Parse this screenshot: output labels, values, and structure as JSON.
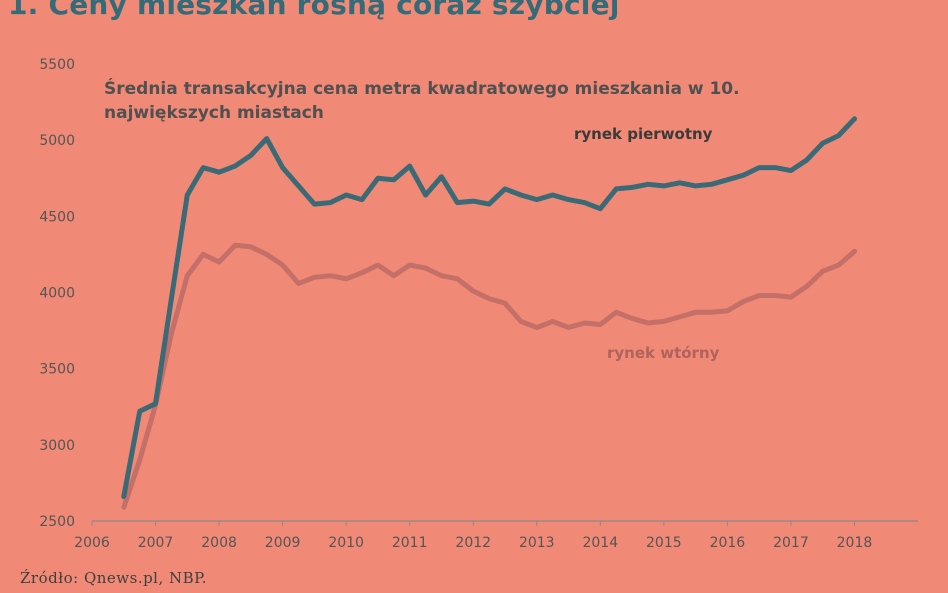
{
  "headline": "1. Ceny mieszkań rosną coraz szybciej",
  "source": "Źródło: Qnews.pl, NBP.",
  "colors": {
    "background": "#f08a76",
    "primary_line": "#3a6a76",
    "secondary_line": "#c46f68",
    "axis_text": "#555555"
  },
  "chart_data": {
    "type": "line",
    "title": "Średnia transakcyjna cena metra kwadratowego mieszkania w 10. największych miastach",
    "title_lines": [
      "Średnia transakcyjna cena metra kwadratowego mieszkania w 10.",
      "największych miastach"
    ],
    "xlabel": "",
    "ylabel": "",
    "xlim": [
      2006,
      2019
    ],
    "ylim": [
      2500,
      5500
    ],
    "x_ticks": [
      "2006",
      "2007",
      "2008",
      "2009",
      "2010",
      "2011",
      "2012",
      "2013",
      "2014",
      "2015",
      "2016",
      "2017",
      "2018"
    ],
    "y_ticks": [
      "2500",
      "3000",
      "3500",
      "4000",
      "4500",
      "5000",
      "5500"
    ],
    "grid": false,
    "series": [
      {
        "name": "rynek pierwotny",
        "x": [
          2006.5,
          2006.75,
          2007.0,
          2007.25,
          2007.5,
          2007.75,
          2008.0,
          2008.25,
          2008.5,
          2008.75,
          2009.0,
          2009.25,
          2009.5,
          2009.75,
          2010.0,
          2010.25,
          2010.5,
          2010.75,
          2011.0,
          2011.25,
          2011.5,
          2011.75,
          2012.0,
          2012.25,
          2012.5,
          2012.75,
          2013.0,
          2013.25,
          2013.5,
          2013.75,
          2014.0,
          2014.25,
          2014.5,
          2014.75,
          2015.0,
          2015.25,
          2015.5,
          2015.75,
          2016.0,
          2016.25,
          2016.5,
          2016.75,
          2017.0,
          2017.25,
          2017.5,
          2017.75,
          2018.0
        ],
        "values": [
          2660,
          3220,
          3270,
          3960,
          4640,
          4820,
          4790,
          4830,
          4900,
          5010,
          4820,
          4700,
          4580,
          4590,
          4640,
          4610,
          4750,
          4740,
          4830,
          4640,
          4760,
          4590,
          4600,
          4580,
          4680,
          4640,
          4610,
          4640,
          4610,
          4590,
          4550,
          4680,
          4690,
          4710,
          4700,
          4720,
          4700,
          4710,
          4740,
          4770,
          4820,
          4820,
          4800,
          4870,
          4980,
          5030,
          5140
        ]
      },
      {
        "name": "rynek wtórny",
        "x": [
          2006.5,
          2006.75,
          2007.0,
          2007.25,
          2007.5,
          2007.75,
          2008.0,
          2008.25,
          2008.5,
          2008.75,
          2009.0,
          2009.25,
          2009.5,
          2009.75,
          2010.0,
          2010.25,
          2010.5,
          2010.75,
          2011.0,
          2011.25,
          2011.5,
          2011.75,
          2012.0,
          2012.25,
          2012.5,
          2012.75,
          2013.0,
          2013.25,
          2013.5,
          2013.75,
          2014.0,
          2014.25,
          2014.5,
          2014.75,
          2015.0,
          2015.25,
          2015.5,
          2015.75,
          2016.0,
          2016.25,
          2016.5,
          2016.75,
          2017.0,
          2017.25,
          2017.5,
          2017.75,
          2018.0
        ],
        "values": [
          2590,
          2900,
          3260,
          3730,
          4110,
          4250,
          4200,
          4310,
          4300,
          4250,
          4180,
          4060,
          4100,
          4110,
          4090,
          4130,
          4180,
          4110,
          4180,
          4160,
          4110,
          4090,
          4010,
          3960,
          3930,
          3810,
          3770,
          3810,
          3770,
          3800,
          3790,
          3870,
          3830,
          3800,
          3810,
          3840,
          3870,
          3870,
          3880,
          3940,
          3980,
          3980,
          3970,
          4040,
          4140,
          4180,
          4270
        ]
      }
    ],
    "series_labels": [
      "rynek pierwotny",
      "rynek wtórny"
    ]
  }
}
